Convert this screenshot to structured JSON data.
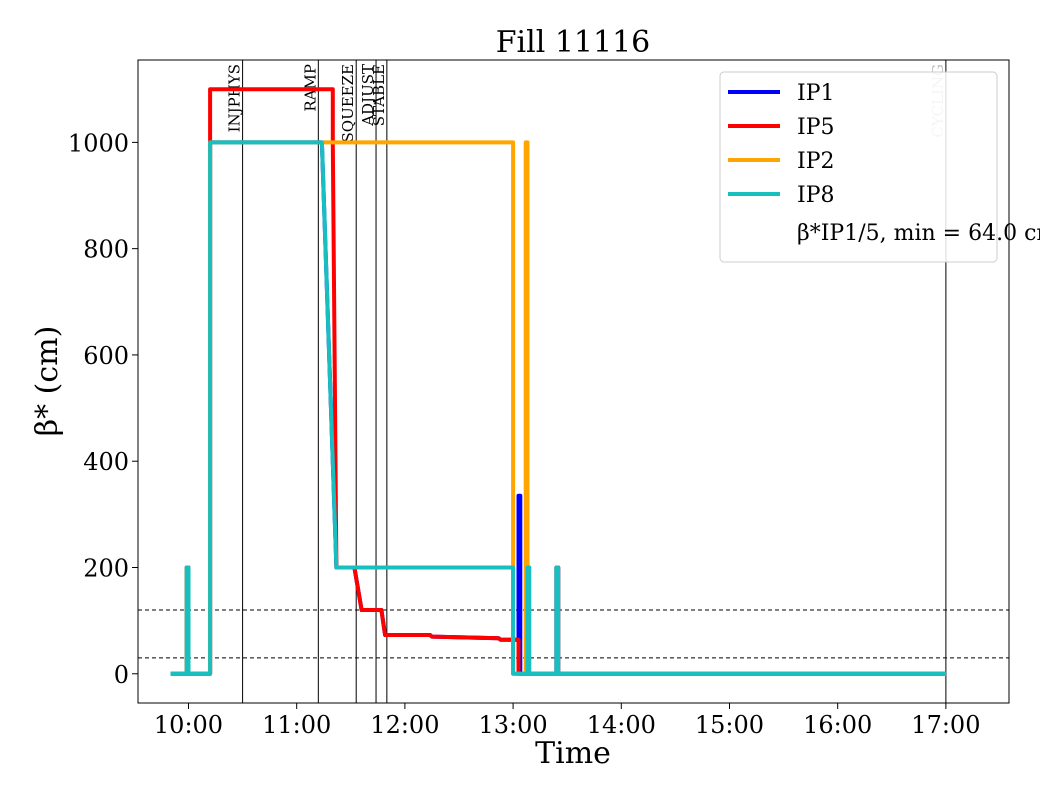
{
  "chart_data": {
    "type": "line",
    "title": "Fill 11116",
    "xlabel": "Time",
    "ylabel": "β* (cm)",
    "x_ticks": [
      "10:00",
      "11:00",
      "12:00",
      "13:00",
      "14:00",
      "15:00",
      "16:00",
      "17:00"
    ],
    "y_ticks": [
      0,
      200,
      400,
      600,
      800,
      1000
    ],
    "xlim": [
      "09:32",
      "17:35"
    ],
    "ylim": [
      -55,
      1155
    ],
    "grid": false,
    "legend_position": "top-right",
    "legend_note": "β*IP1/5, min = 64.0 cm",
    "horizontal_reference_lines": [
      30,
      120
    ],
    "event_markers": [
      {
        "label": "INJPHYS",
        "time": "10:30"
      },
      {
        "label": "RAMP",
        "time": "11:12"
      },
      {
        "label": "SQUEEZE",
        "time": "11:33"
      },
      {
        "label": "ADJUST",
        "time": "11:44"
      },
      {
        "label": "STABLE",
        "time": "11:50"
      },
      {
        "label": "CYCLING",
        "time": "17:00"
      }
    ],
    "series": [
      {
        "name": "IP1",
        "color": "#0000ff",
        "points": [
          [
            "09:50",
            0
          ],
          [
            "09:59",
            0
          ],
          [
            "09:59",
            200
          ],
          [
            "10:00",
            200
          ],
          [
            "10:00",
            0
          ],
          [
            "10:12",
            0
          ],
          [
            "10:12",
            1000
          ],
          [
            "11:14",
            1000
          ],
          [
            "11:22",
            200
          ],
          [
            "11:32",
            200
          ],
          [
            "11:34",
            160
          ],
          [
            "11:36",
            120
          ],
          [
            "11:47",
            120
          ],
          [
            "11:49",
            73
          ],
          [
            "12:14",
            73
          ],
          [
            "12:15",
            70
          ],
          [
            "12:52",
            67
          ],
          [
            "12:53",
            64
          ],
          [
            "13:03",
            64
          ],
          [
            "13:03",
            335
          ],
          [
            "13:04",
            335
          ],
          [
            "13:04",
            0
          ],
          [
            "13:24",
            0
          ],
          [
            "13:24",
            200
          ],
          [
            "13:25",
            200
          ],
          [
            "13:25",
            0
          ],
          [
            "17:00",
            0
          ]
        ]
      },
      {
        "name": "IP5",
        "color": "#ff0000",
        "points": [
          [
            "09:50",
            0
          ],
          [
            "09:59",
            0
          ],
          [
            "09:59",
            200
          ],
          [
            "10:00",
            200
          ],
          [
            "10:00",
            0
          ],
          [
            "10:12",
            0
          ],
          [
            "10:12",
            1100
          ],
          [
            "11:20",
            1100
          ],
          [
            "11:20",
            1000
          ],
          [
            "11:22",
            200
          ],
          [
            "11:32",
            200
          ],
          [
            "11:34",
            160
          ],
          [
            "11:36",
            120
          ],
          [
            "11:47",
            120
          ],
          [
            "11:49",
            73
          ],
          [
            "12:14",
            73
          ],
          [
            "12:15",
            70
          ],
          [
            "12:52",
            67
          ],
          [
            "12:53",
            64
          ],
          [
            "13:03",
            64
          ],
          [
            "13:03",
            0
          ],
          [
            "13:24",
            0
          ],
          [
            "13:24",
            200
          ],
          [
            "13:25",
            200
          ],
          [
            "13:25",
            0
          ],
          [
            "17:00",
            0
          ]
        ]
      },
      {
        "name": "IP2",
        "color": "#ffa500",
        "points": [
          [
            "09:50",
            0
          ],
          [
            "09:59",
            0
          ],
          [
            "09:59",
            200
          ],
          [
            "10:00",
            200
          ],
          [
            "10:00",
            0
          ],
          [
            "10:12",
            0
          ],
          [
            "10:12",
            1000
          ],
          [
            "13:00",
            1000
          ],
          [
            "13:00",
            0
          ],
          [
            "13:07",
            0
          ],
          [
            "13:07",
            1000
          ],
          [
            "13:08",
            1000
          ],
          [
            "13:08",
            0
          ],
          [
            "17:00",
            0
          ]
        ]
      },
      {
        "name": "IP8",
        "color": "#17bfbf",
        "points": [
          [
            "09:50",
            0
          ],
          [
            "09:59",
            0
          ],
          [
            "09:59",
            200
          ],
          [
            "10:00",
            200
          ],
          [
            "10:00",
            0
          ],
          [
            "10:12",
            0
          ],
          [
            "10:12",
            1000
          ],
          [
            "11:14",
            1000
          ],
          [
            "11:22",
            200
          ],
          [
            "13:00",
            200
          ],
          [
            "13:00",
            0
          ],
          [
            "13:08",
            0
          ],
          [
            "13:08",
            200
          ],
          [
            "13:09",
            200
          ],
          [
            "13:09",
            0
          ],
          [
            "13:24",
            0
          ],
          [
            "13:24",
            200
          ],
          [
            "13:25",
            200
          ],
          [
            "13:25",
            0
          ],
          [
            "17:00",
            0
          ]
        ]
      }
    ]
  }
}
